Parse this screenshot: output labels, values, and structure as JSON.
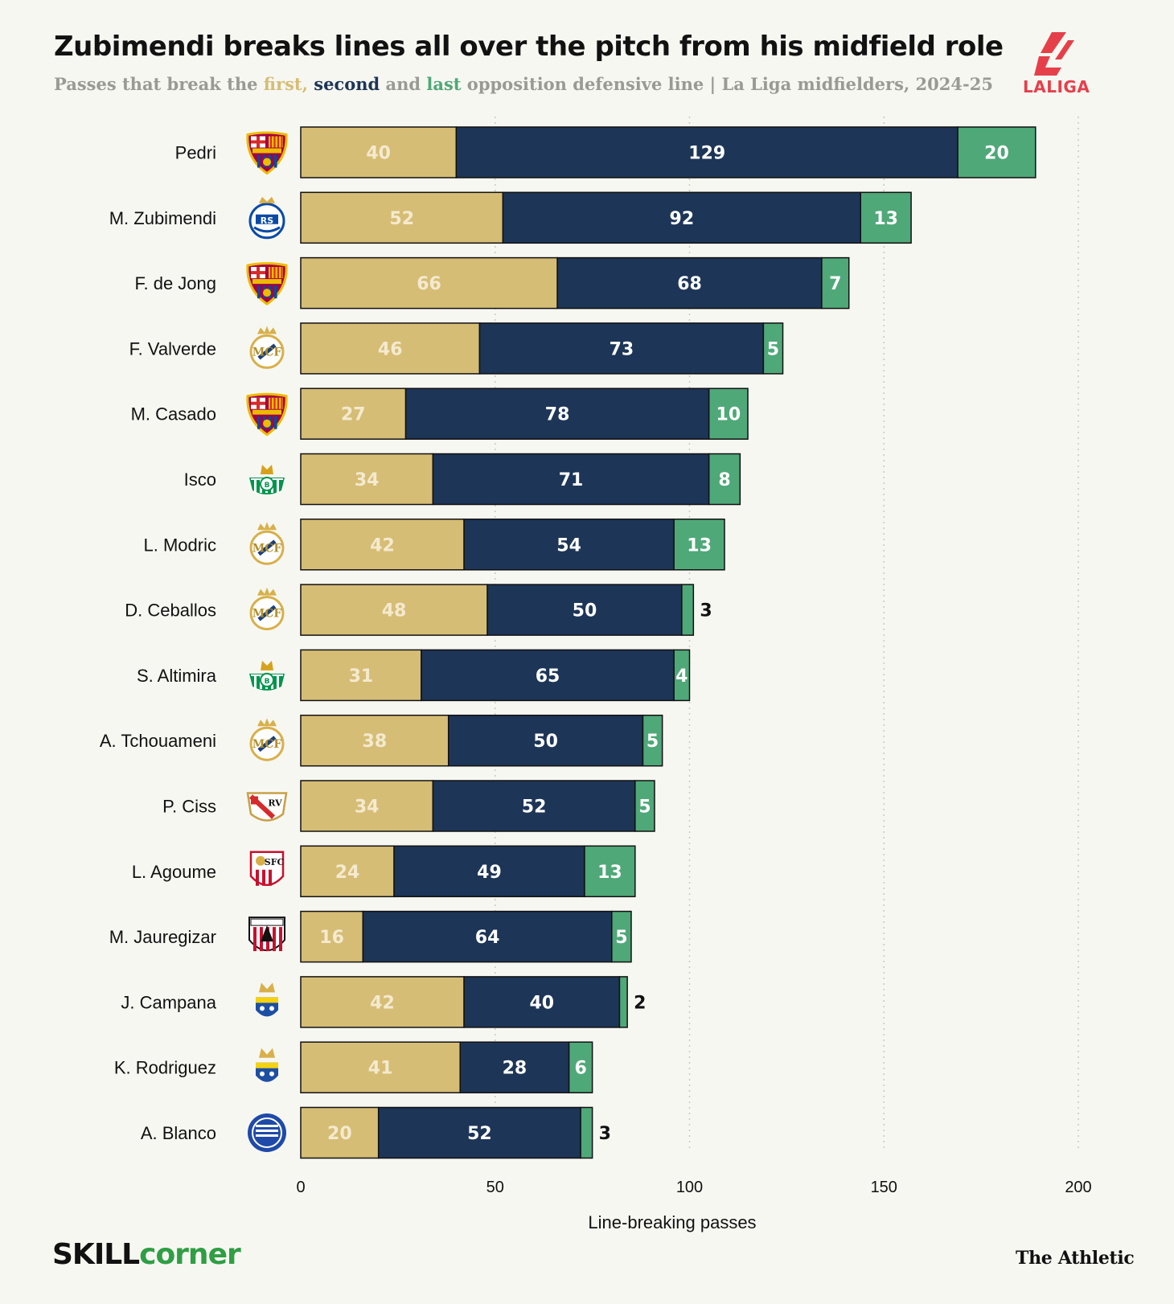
{
  "header": {
    "title": "Zubimendi breaks lines all over the pitch from his midfield role",
    "subtitle_parts": [
      "Passes that break the ",
      "first,",
      " ",
      "second",
      " and ",
      "last",
      " opposition defensive line | La Liga midfielders, 2024-25"
    ]
  },
  "logo": {
    "text": "LALIGA",
    "icon": "laliga-logo-icon"
  },
  "colors": {
    "first": "#d6bd75",
    "second": "#1d3557",
    "last": "#4fa878",
    "grid": "#c9c9c4",
    "background": "#f7f7f2"
  },
  "chart_data": {
    "type": "bar",
    "orientation": "horizontal",
    "stacked": true,
    "categories": [
      "Pedri",
      "M. Zubimendi",
      "F. de Jong",
      "F. Valverde",
      "M. Casado",
      "Isco",
      "L. Modric",
      "D. Ceballos",
      "S. Altimira",
      "A. Tchouameni",
      "P. Ciss",
      "L. Agoume",
      "M. Jauregizar",
      "J. Campana",
      "K. Rodriguez",
      "A. Blanco"
    ],
    "clubs": [
      "barcelona",
      "real-sociedad",
      "barcelona",
      "real-madrid",
      "barcelona",
      "real-betis",
      "real-madrid",
      "real-madrid",
      "real-betis",
      "real-madrid",
      "rayo-vallecano",
      "sevilla",
      "athletic-club",
      "las-palmas",
      "las-palmas",
      "alaves"
    ],
    "series": [
      {
        "name": "first",
        "values": [
          40,
          52,
          66,
          46,
          27,
          34,
          42,
          48,
          31,
          38,
          34,
          24,
          16,
          42,
          41,
          20
        ]
      },
      {
        "name": "second",
        "values": [
          129,
          92,
          68,
          73,
          78,
          71,
          54,
          50,
          65,
          50,
          52,
          49,
          64,
          40,
          28,
          52
        ]
      },
      {
        "name": "last",
        "values": [
          20,
          13,
          7,
          5,
          10,
          8,
          13,
          3,
          4,
          5,
          5,
          13,
          5,
          2,
          6,
          3
        ]
      }
    ],
    "xlabel": "Line-breaking passes",
    "xlim": [
      0,
      200
    ],
    "xticks": [
      0,
      50,
      100,
      150,
      200
    ],
    "grid": true
  },
  "footer": {
    "source_brand_a": "SKILL",
    "source_brand_b": "corner",
    "publisher": "The Athletic"
  }
}
